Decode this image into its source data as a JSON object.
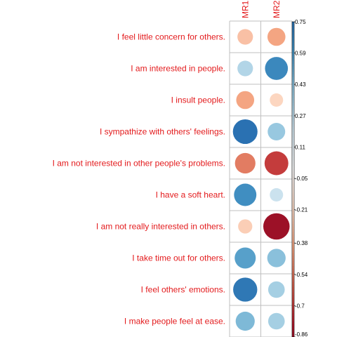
{
  "chart_data": {
    "type": "heatmap",
    "columns": [
      "MR1",
      "MR2"
    ],
    "rows": [
      "I feel little concern for others.",
      "I am interested in people.",
      "I insult people.",
      "I sympathize with others' feelings.",
      "I am not interested in other people's problems.",
      "I have a soft heart.",
      "I am not really interested in others.",
      "I take time out for others.",
      "I feel others' emotions.",
      "I make people feel at ease."
    ],
    "values": [
      [
        -0.3,
        -0.4
      ],
      [
        0.3,
        0.65
      ],
      [
        -0.4,
        -0.22
      ],
      [
        0.75,
        0.38
      ],
      [
        -0.52,
        -0.7
      ],
      [
        0.62,
        0.22
      ],
      [
        -0.25,
        -0.86
      ],
      [
        0.55,
        0.42
      ],
      [
        0.72,
        0.34
      ],
      [
        0.45,
        0.34
      ]
    ],
    "value_range": [
      -0.86,
      0.75
    ],
    "colorbar_ticks": [
      "0.75",
      "0.59",
      "0.43",
      "0.27",
      "0.11",
      "-0.05",
      "-0.21",
      "-0.38",
      "-0.54",
      "-0.7",
      "-0.86"
    ],
    "colorbar_values": [
      0.75,
      0.59,
      0.43,
      0.27,
      0.11,
      -0.05,
      -0.21,
      -0.38,
      -0.54,
      -0.7,
      -0.86
    ],
    "glyph": "circle",
    "grid": true,
    "colors": {
      "label": "#e31a1c",
      "grid": "#bfbfbf",
      "palette_neg_to_pos": [
        "#67001f",
        "#b2182b",
        "#d6604d",
        "#f4a582",
        "#fddbc7",
        "#f7f7f7",
        "#d1e5f0",
        "#92c5de",
        "#4393c3",
        "#2166ac",
        "#053061"
      ]
    }
  }
}
